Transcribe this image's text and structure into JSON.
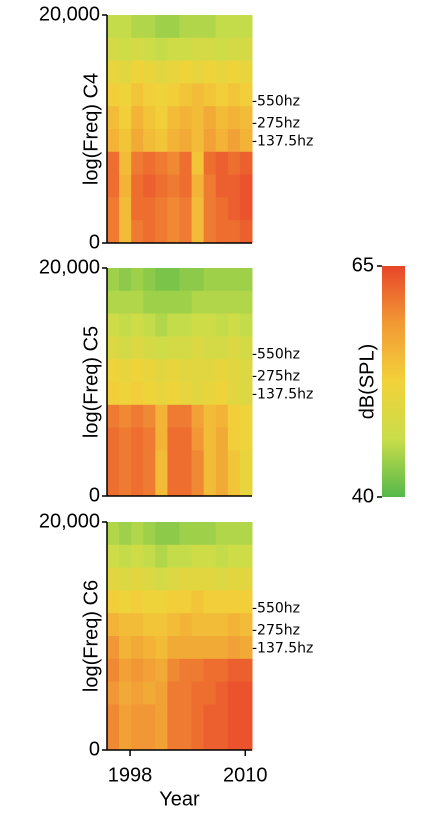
{
  "chart_data": [
    {
      "type": "heatmap",
      "ylabel": "log(Freq) C4",
      "ylim": [
        0,
        20000
      ],
      "yticks": [
        0,
        {
          "value": 20000,
          "label": "20,000"
        }
      ],
      "annotations": [
        "-550hz",
        "-275hz",
        "-137.5hz"
      ],
      "z": [
        [
          46,
          46,
          45,
          45,
          44,
          44,
          45,
          45,
          45,
          46,
          46,
          46
        ],
        [
          48,
          47,
          48,
          47,
          46,
          47,
          47,
          48,
          48,
          47,
          48,
          48
        ],
        [
          51,
          50,
          52,
          51,
          50,
          51,
          52,
          51,
          52,
          51,
          52,
          51
        ],
        [
          53,
          52,
          54,
          53,
          52,
          53,
          54,
          55,
          54,
          53,
          54,
          53
        ],
        [
          55,
          53,
          56,
          54,
          53,
          55,
          56,
          55,
          57,
          55,
          56,
          55
        ],
        [
          56,
          54,
          57,
          55,
          54,
          56,
          57,
          55,
          58,
          56,
          58,
          56
        ],
        [
          62,
          55,
          61,
          62,
          61,
          60,
          62,
          54,
          62,
          63,
          62,
          63
        ],
        [
          62,
          56,
          62,
          63,
          62,
          61,
          62,
          56,
          61,
          63,
          63,
          64
        ],
        [
          61,
          55,
          62,
          62,
          61,
          60,
          61,
          55,
          61,
          62,
          63,
          64
        ],
        [
          61,
          55,
          61,
          62,
          61,
          60,
          61,
          55,
          61,
          62,
          62,
          63
        ]
      ]
    },
    {
      "type": "heatmap",
      "ylabel": "log(Freq) C5",
      "ylim": [
        0,
        20000
      ],
      "yticks": [
        0,
        {
          "value": 20000,
          "label": "20,000"
        }
      ],
      "annotations": [
        "-550hz",
        "-275hz",
        "-137.5hz"
      ],
      "z": [
        [
          44,
          43,
          44,
          43,
          42,
          42,
          43,
          43,
          44,
          44,
          44,
          44
        ],
        [
          45,
          45,
          45,
          44,
          44,
          44,
          44,
          45,
          45,
          45,
          45,
          45
        ],
        [
          47,
          46,
          47,
          46,
          45,
          46,
          46,
          47,
          47,
          46,
          47,
          46
        ],
        [
          49,
          48,
          49,
          48,
          47,
          48,
          48,
          49,
          48,
          48,
          49,
          48
        ],
        [
          52,
          51,
          52,
          51,
          50,
          51,
          50,
          50,
          50,
          51,
          50,
          49
        ],
        [
          53,
          52,
          53,
          52,
          51,
          52,
          51,
          50,
          51,
          52,
          50,
          49
        ],
        [
          61,
          60,
          61,
          60,
          56,
          61,
          61,
          58,
          55,
          56,
          53,
          52
        ],
        [
          62,
          61,
          62,
          61,
          56,
          62,
          62,
          59,
          55,
          57,
          53,
          52
        ],
        [
          62,
          61,
          62,
          61,
          55,
          62,
          62,
          60,
          55,
          57,
          54,
          51
        ],
        [
          62,
          61,
          62,
          61,
          55,
          62,
          62,
          60,
          55,
          57,
          54,
          51
        ]
      ]
    },
    {
      "type": "heatmap",
      "ylabel": "log(Freq) C6",
      "ylim": [
        0,
        20000
      ],
      "yticks": [
        0,
        {
          "value": 20000,
          "label": "20,000"
        }
      ],
      "annotations": [
        "-550hz",
        "-275hz",
        "-137.5hz"
      ],
      "xlabel": "Year",
      "xlim": [
        1995.6,
        2010.7
      ],
      "xticks": [
        1998,
        2010
      ],
      "z": [
        [
          45,
          44,
          45,
          44,
          43,
          43,
          44,
          44,
          44,
          45,
          45,
          45
        ],
        [
          47,
          46,
          47,
          46,
          45,
          46,
          46,
          47,
          47,
          46,
          47,
          47
        ],
        [
          50,
          49,
          50,
          49,
          48,
          49,
          50,
          50,
          50,
          49,
          50,
          50
        ],
        [
          53,
          52,
          53,
          52,
          52,
          53,
          53,
          54,
          53,
          53,
          53,
          53
        ],
        [
          56,
          55,
          55,
          54,
          54,
          55,
          56,
          55,
          55,
          55,
          56,
          55
        ],
        [
          59,
          56,
          57,
          56,
          55,
          57,
          57,
          57,
          57,
          57,
          58,
          57
        ],
        [
          60,
          58,
          59,
          58,
          57,
          60,
          61,
          61,
          62,
          62,
          63,
          63
        ],
        [
          59,
          57,
          58,
          57,
          58,
          61,
          61,
          62,
          62,
          63,
          64,
          64
        ],
        [
          60,
          58,
          59,
          59,
          58,
          61,
          61,
          62,
          63,
          63,
          64,
          64
        ],
        [
          60,
          58,
          59,
          59,
          58,
          61,
          61,
          62,
          63,
          63,
          64,
          64
        ]
      ]
    }
  ],
  "colorbar": {
    "label": "dB(SPL)",
    "clim": [
      40,
      65
    ],
    "ticks": [
      40,
      65
    ],
    "colors": [
      "#55b84a",
      "#c9dd4a",
      "#f2d23a",
      "#f29a35",
      "#e8452a"
    ]
  }
}
